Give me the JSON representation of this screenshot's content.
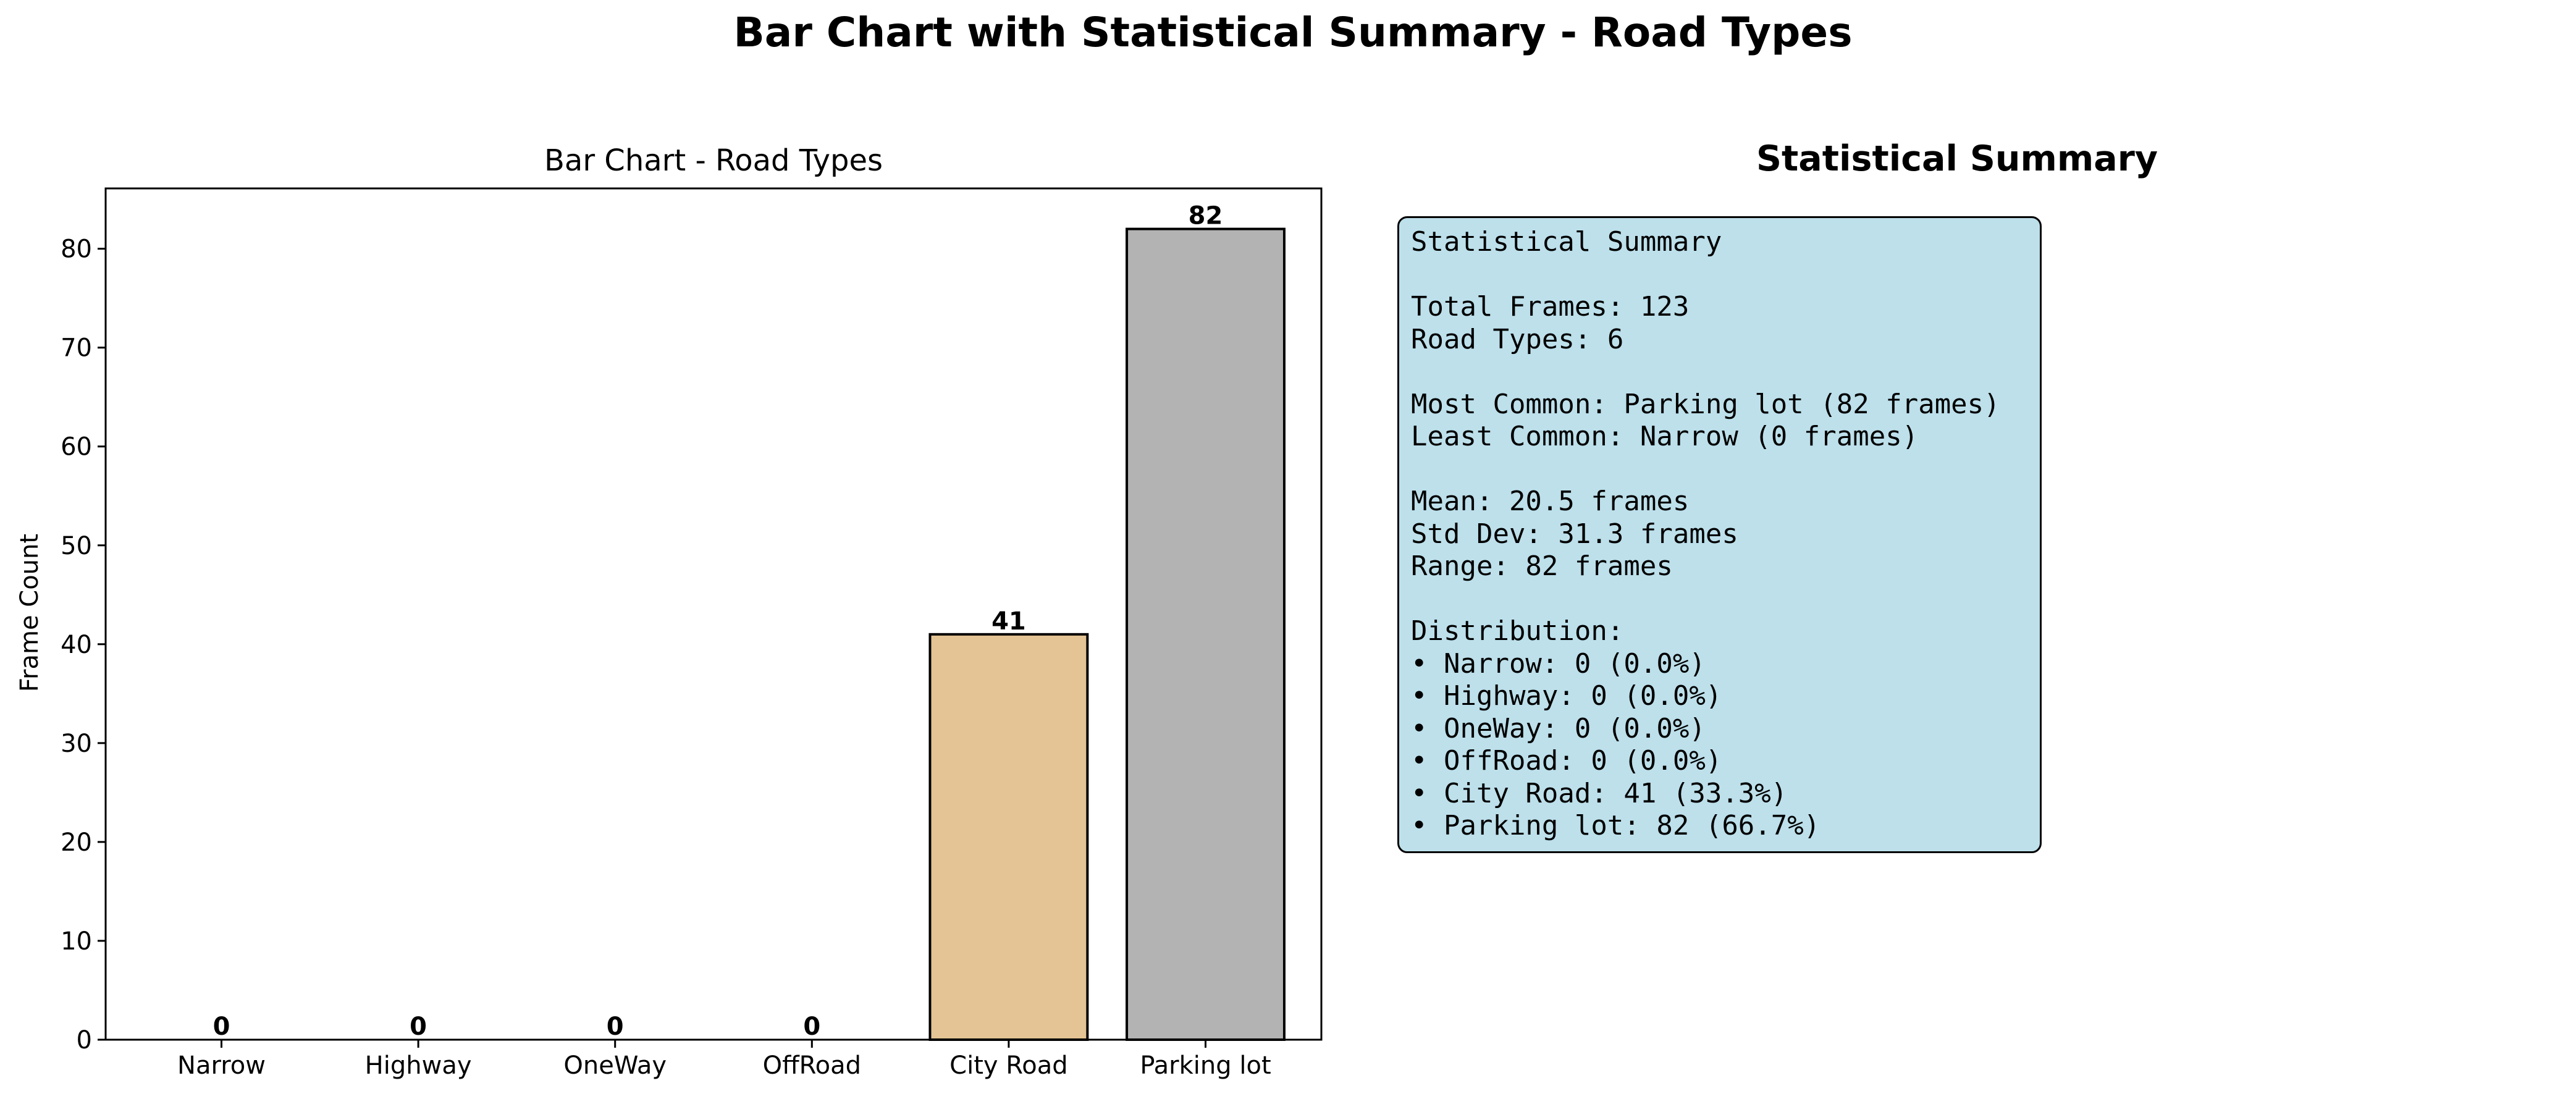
{
  "figure": {
    "suptitle": "Bar Chart with Statistical Summary - Road Types"
  },
  "chart_data": {
    "type": "bar",
    "title": "Bar Chart - Road Types",
    "xlabel": "",
    "ylabel": "Frame Count",
    "categories": [
      "Narrow",
      "Highway",
      "OneWay",
      "OffRoad",
      "City Road",
      "Parking lot"
    ],
    "values": [
      0,
      0,
      0,
      0,
      41,
      82
    ],
    "colors": [
      "#8dd3c7",
      "#bebada",
      "#fb8072",
      "#80b1d3",
      "#e4c494",
      "#b3b3b3"
    ],
    "ylim": [
      0,
      86.1
    ],
    "yticks": [
      0,
      10,
      20,
      30,
      40,
      50,
      60,
      70,
      80
    ],
    "data_labels": [
      "0",
      "0",
      "0",
      "0",
      "41",
      "82"
    ],
    "grid": false,
    "legend": "none"
  },
  "summary": {
    "panel_title": "Statistical Summary",
    "lines": [
      "Statistical Summary",
      "",
      "Total Frames: 123",
      "Road Types: 6",
      "",
      "Most Common: Parking lot (82 frames)",
      "Least Common: Narrow (0 frames)",
      "",
      "Mean: 20.5 frames",
      "Std Dev: 31.3 frames",
      "Range: 82 frames",
      "",
      "Distribution:",
      "• Narrow: 0 (0.0%)",
      "• Highway: 0 (0.0%)",
      "• OneWay: 0 (0.0%)",
      "• OffRoad: 0 (0.0%)",
      "• City Road: 41 (33.3%)",
      "• Parking lot: 82 (66.7%)"
    ],
    "box_color": "#add8e6"
  }
}
